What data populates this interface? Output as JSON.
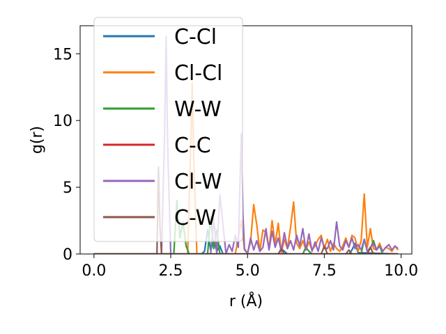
{
  "chart_data": {
    "type": "line",
    "xlabel": "r (Å)",
    "ylabel": "g(r)",
    "xlim": [
      -0.45,
      10.35
    ],
    "ylim": [
      0,
      17.1
    ],
    "xticks": [
      "0.0",
      "2.5",
      "5.0",
      "7.5",
      "10.0"
    ],
    "xtick_values": [
      0,
      2.5,
      5,
      7.5,
      10
    ],
    "yticks": [
      "0",
      "5",
      "10",
      "15"
    ],
    "ytick_values": [
      0,
      5,
      10,
      15
    ],
    "grid": false,
    "legend_position": "upper-left",
    "series": [
      {
        "name": "C-Cl",
        "color": "#1f77b4",
        "x": [
          0,
          3.5,
          3.6,
          3.7,
          3.8,
          3.9,
          4.0,
          4.1,
          4.2,
          6.0,
          6.1,
          6.2,
          6.3,
          8.3,
          8.4,
          8.5,
          8.6,
          9.9
        ],
        "y": [
          0,
          0,
          0.2,
          1.8,
          0.3,
          1.0,
          0.2,
          0.6,
          0,
          0,
          0.4,
          0.2,
          0,
          0,
          0.3,
          0.8,
          0.1,
          0
        ]
      },
      {
        "name": "Cl-Cl",
        "color": "#ff7f0e",
        "x": [
          0,
          3.05,
          3.15,
          3.2,
          3.25,
          3.35,
          4.6,
          4.7,
          4.8,
          4.9,
          5.0,
          5.1,
          5.2,
          5.3,
          5.4,
          5.5,
          5.6,
          5.7,
          5.8,
          5.9,
          6.0,
          6.1,
          6.2,
          6.3,
          6.4,
          6.5,
          6.6,
          6.7,
          6.8,
          6.9,
          7.0,
          7.1,
          7.2,
          7.3,
          7.4,
          7.5,
          7.6,
          7.7,
          7.8,
          7.9,
          8.0,
          8.1,
          8.2,
          8.3,
          8.4,
          8.5,
          8.6,
          8.7,
          8.8,
          8.9,
          9.0,
          9.1,
          9.2,
          9.3,
          9.4,
          9.5,
          9.6,
          9.7,
          9.8,
          9.9
        ],
        "y": [
          0,
          0,
          8,
          12.8,
          7,
          0,
          0,
          1.2,
          2.5,
          0.3,
          0.1,
          0.9,
          3.7,
          2.2,
          0.2,
          1.8,
          1.6,
          0.4,
          2.5,
          0.7,
          2.3,
          0.1,
          1.1,
          0.4,
          2.0,
          3.9,
          0.8,
          0.4,
          1.0,
          0.3,
          0.9,
          0.3,
          0.6,
          1.1,
          1.4,
          0.4,
          1.1,
          0.2,
          0.8,
          0.4,
          0.2,
          0.6,
          1.2,
          0.5,
          1.4,
          1.2,
          0.2,
          1.0,
          4.5,
          0.5,
          1.9,
          0.4,
          0.3,
          0.8,
          0.2,
          0.5,
          0.4,
          0.2,
          0.6,
          0.3
        ]
      },
      {
        "name": "W-W",
        "color": "#2ca02c",
        "x": [
          0,
          2.6,
          2.7,
          2.8,
          2.9,
          3.0,
          3.1,
          3.7,
          3.8,
          3.9,
          4.0,
          4.1,
          6.8,
          6.9,
          7.0,
          7.1,
          8.7,
          8.8,
          8.9,
          9.0,
          9.1,
          9.2,
          9.3,
          9.4,
          9.9
        ],
        "y": [
          0,
          0,
          4.0,
          1.2,
          2.4,
          0.6,
          0,
          0,
          2.8,
          0.4,
          1.8,
          0,
          0,
          0.5,
          0.2,
          0,
          0,
          1.1,
          0.2,
          0.4,
          1.0,
          0.3,
          0.6,
          0,
          0
        ]
      },
      {
        "name": "C-C",
        "color": "#d62728",
        "x": [
          0,
          9.9
        ],
        "y": [
          0,
          0
        ]
      },
      {
        "name": "Cl-W",
        "color": "#9467bd",
        "x": [
          0,
          2.2,
          2.3,
          2.35,
          2.4,
          2.5,
          3.8,
          3.9,
          4.0,
          4.1,
          4.3,
          4.4,
          4.5,
          4.6,
          4.7,
          4.75,
          4.8,
          4.85,
          4.9,
          5.0,
          5.1,
          5.2,
          5.3,
          5.4,
          5.5,
          5.6,
          5.7,
          5.8,
          5.9,
          6.0,
          6.1,
          6.2,
          6.3,
          6.4,
          6.5,
          6.6,
          6.7,
          6.8,
          6.9,
          7.0,
          7.1,
          7.2,
          7.3,
          7.4,
          7.5,
          7.6,
          7.7,
          7.8,
          7.9,
          8.0,
          8.1,
          8.2,
          8.3,
          8.4,
          8.5,
          8.6,
          8.7,
          8.8,
          8.9,
          9.0,
          9.1,
          9.2,
          9.3,
          9.4,
          9.5,
          9.6,
          9.7,
          9.8,
          9.9
        ],
        "y": [
          0,
          0,
          9,
          16.3,
          8,
          0,
          0,
          2.6,
          0,
          4.4,
          0,
          0.7,
          0.2,
          1.4,
          0.5,
          5.0,
          9.0,
          3.0,
          0.4,
          0,
          1.2,
          0.3,
          1.0,
          0.2,
          0.5,
          1.9,
          0.3,
          1.7,
          0.5,
          1.2,
          0.2,
          1.6,
          0.4,
          1.0,
          0.3,
          1.4,
          0.6,
          1.9,
          0.3,
          1.5,
          0.2,
          0.9,
          0.2,
          1.2,
          0.5,
          0.4,
          1.0,
          0.3,
          2.4,
          0.6,
          0.3,
          1.0,
          0.5,
          1.2,
          0.4,
          0.7,
          0.3,
          1.1,
          0.2,
          0.5,
          0.8,
          0.3,
          0.6,
          0.2,
          0.5,
          0.7,
          0.3,
          0.6,
          0.4
        ]
      },
      {
        "name": "C-W",
        "color": "#8c564b",
        "x": [
          0,
          2.05,
          2.1,
          2.15,
          2.2,
          6.0,
          6.1,
          6.2,
          7.4,
          7.5,
          7.6,
          8.2,
          8.3,
          8.4,
          8.9,
          9.0,
          9.1,
          9.9
        ],
        "y": [
          0,
          0,
          6.5,
          2.0,
          0,
          0,
          0.4,
          0,
          0,
          0.6,
          0,
          0,
          0.3,
          0,
          0,
          0.5,
          0,
          0
        ]
      }
    ]
  }
}
